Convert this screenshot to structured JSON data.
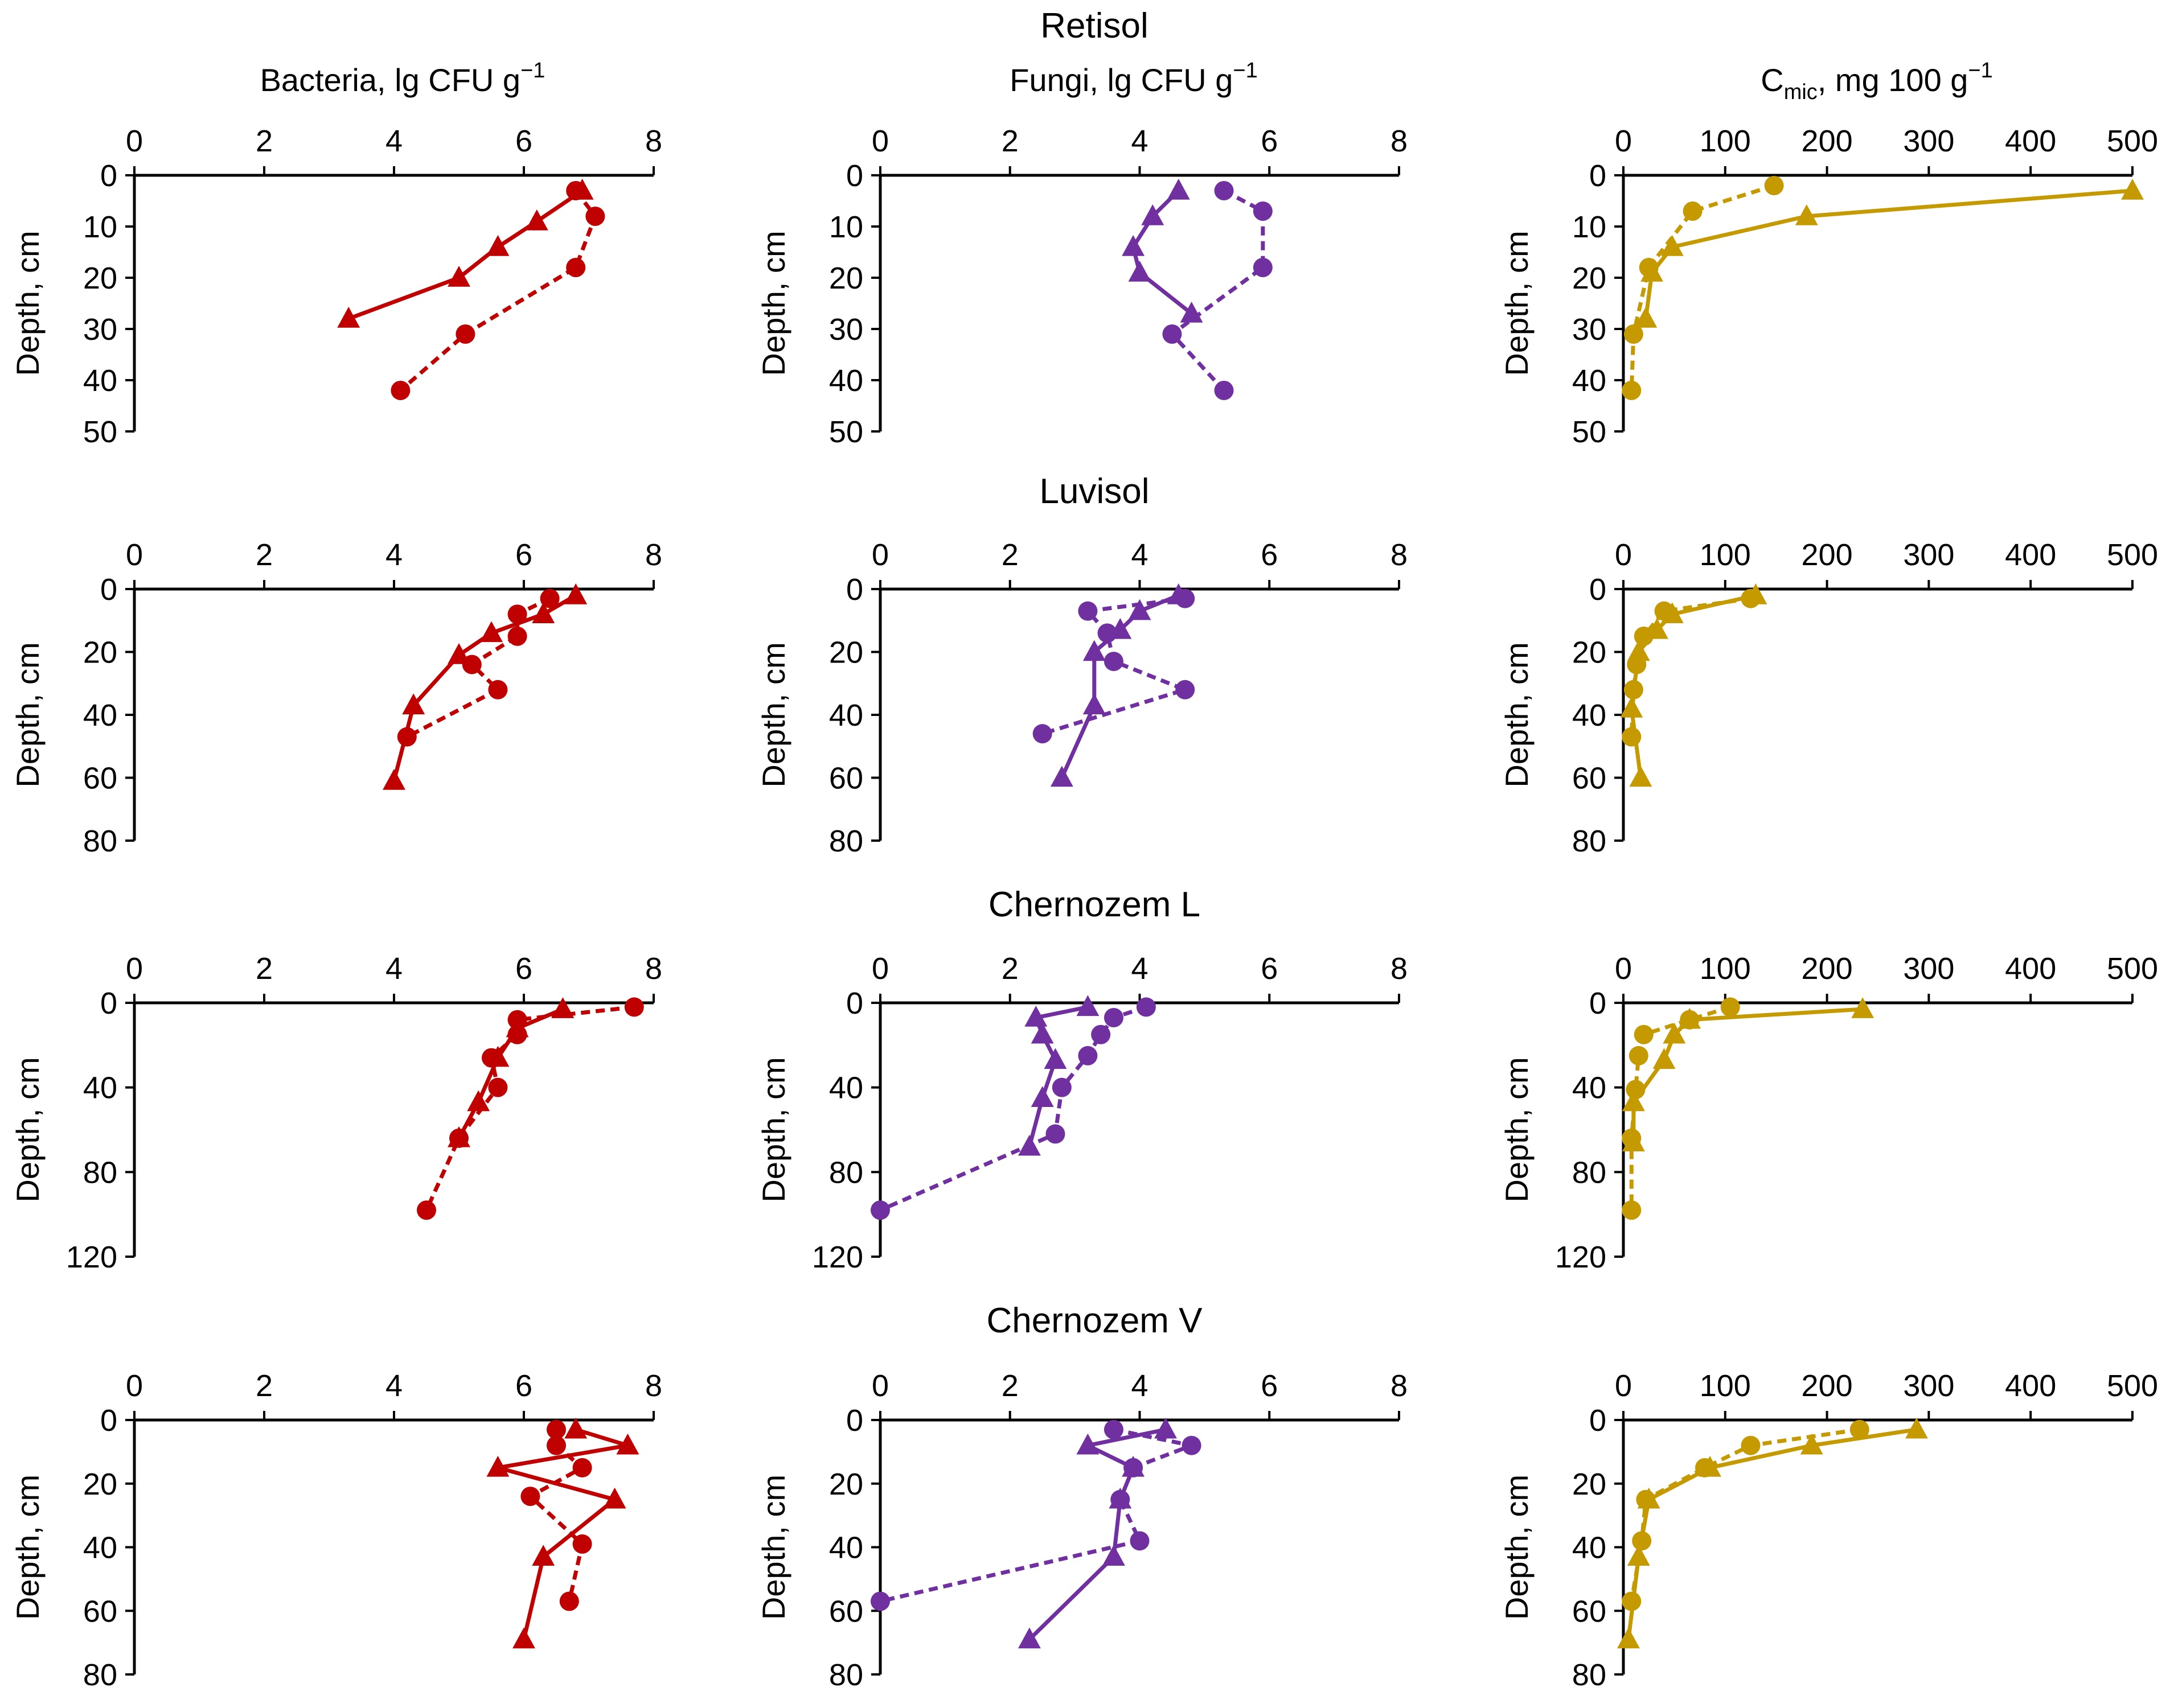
{
  "figure": {
    "row_titles": [
      "Retisol",
      "Luvisol",
      "Chernozem L",
      "Chernozem V"
    ],
    "column_titles": [
      {
        "text": "Bacteria, lg CFU g",
        "sup": "−1"
      },
      {
        "text": "Fungi, lg CFU g",
        "sup": "−1"
      },
      {
        "text": "C",
        "sub": "mic",
        "tail": ", mg 100 g",
        "sup": "−1"
      }
    ],
    "y_axis_label": "Depth, cm",
    "colors": {
      "bacteria": "#C00000",
      "fungi": "#7030A0",
      "cmic": "#C49A00"
    }
  },
  "chart_data": [
    {
      "type": "line",
      "row": 0,
      "col": 0,
      "soil": "Retisol",
      "variable": "Bacteria",
      "xlim": [
        0,
        8
      ],
      "xticks": [
        0,
        2,
        4,
        6,
        8
      ],
      "ylim": [
        0,
        50
      ],
      "yticks": [
        0,
        10,
        20,
        30,
        40,
        50
      ],
      "y_reversed": true,
      "xlabel": "Bacteria, lg CFU g−1",
      "ylabel": "Depth, cm",
      "series": [
        {
          "name": "triangle-solid",
          "marker": "triangle",
          "line": "solid",
          "points": [
            [
              6.9,
              3
            ],
            [
              6.2,
              9
            ],
            [
              5.6,
              14
            ],
            [
              5.0,
              20
            ],
            [
              3.3,
              28
            ]
          ]
        },
        {
          "name": "circle-dashed",
          "marker": "circle",
          "line": "dashed",
          "points": [
            [
              6.8,
              3
            ],
            [
              7.1,
              8
            ],
            [
              6.8,
              18
            ],
            [
              5.1,
              31
            ],
            [
              4.1,
              42
            ]
          ]
        }
      ]
    },
    {
      "type": "line",
      "row": 0,
      "col": 1,
      "soil": "Retisol",
      "variable": "Fungi",
      "xlim": [
        0,
        8
      ],
      "xticks": [
        0,
        2,
        4,
        6,
        8
      ],
      "ylim": [
        0,
        50
      ],
      "yticks": [
        0,
        10,
        20,
        30,
        40,
        50
      ],
      "y_reversed": true,
      "xlabel": "Fungi, lg CFU g−1",
      "ylabel": "Depth, cm",
      "series": [
        {
          "name": "triangle-solid",
          "marker": "triangle",
          "line": "solid",
          "points": [
            [
              4.6,
              3
            ],
            [
              4.2,
              8
            ],
            [
              3.9,
              14
            ],
            [
              4.0,
              19
            ],
            [
              4.8,
              27
            ]
          ]
        },
        {
          "name": "circle-dashed",
          "marker": "circle",
          "line": "dashed",
          "points": [
            [
              5.3,
              3
            ],
            [
              5.9,
              7
            ],
            [
              5.9,
              18
            ],
            [
              4.5,
              31
            ],
            [
              5.3,
              42
            ]
          ]
        }
      ]
    },
    {
      "type": "line",
      "row": 0,
      "col": 2,
      "soil": "Retisol",
      "variable": "Cmic",
      "xlim": [
        0,
        500
      ],
      "xticks": [
        0,
        100,
        200,
        300,
        400,
        500
      ],
      "ylim": [
        0,
        50
      ],
      "yticks": [
        0,
        10,
        20,
        30,
        40,
        50
      ],
      "y_reversed": true,
      "xlabel": "Cmic, mg 100 g−1",
      "ylabel": "Depth, cm",
      "series": [
        {
          "name": "triangle-solid",
          "marker": "triangle",
          "line": "solid",
          "points": [
            [
              500,
              3
            ],
            [
              180,
              8
            ],
            [
              48,
              14
            ],
            [
              28,
              19
            ],
            [
              22,
              28
            ]
          ]
        },
        {
          "name": "circle-dashed",
          "marker": "circle",
          "line": "dashed",
          "points": [
            [
              148,
              2
            ],
            [
              68,
              7
            ],
            [
              25,
              18
            ],
            [
              10,
              31
            ],
            [
              8,
              42
            ]
          ]
        }
      ]
    },
    {
      "type": "line",
      "row": 1,
      "col": 0,
      "soil": "Luvisol",
      "variable": "Bacteria",
      "xlim": [
        0,
        8
      ],
      "xticks": [
        0,
        2,
        4,
        6,
        8
      ],
      "ylim": [
        0,
        80
      ],
      "yticks": [
        0,
        20,
        40,
        60,
        80
      ],
      "y_reversed": true,
      "xlabel": "Bacteria, lg CFU g−1",
      "ylabel": "Depth, cm",
      "series": [
        {
          "name": "triangle-solid",
          "marker": "triangle",
          "line": "solid",
          "points": [
            [
              6.8,
              2
            ],
            [
              6.3,
              8
            ],
            [
              5.5,
              14
            ],
            [
              5.0,
              21
            ],
            [
              4.3,
              37
            ],
            [
              4.0,
              61
            ]
          ]
        },
        {
          "name": "circle-dashed",
          "marker": "circle",
          "line": "dashed",
          "points": [
            [
              6.4,
              3
            ],
            [
              5.9,
              8
            ],
            [
              5.9,
              15
            ],
            [
              5.2,
              24
            ],
            [
              5.6,
              32
            ],
            [
              4.2,
              47
            ]
          ]
        }
      ]
    },
    {
      "type": "line",
      "row": 1,
      "col": 1,
      "soil": "Luvisol",
      "variable": "Fungi",
      "xlim": [
        0,
        8
      ],
      "xticks": [
        0,
        2,
        4,
        6,
        8
      ],
      "ylim": [
        0,
        80
      ],
      "yticks": [
        0,
        20,
        40,
        60,
        80
      ],
      "y_reversed": true,
      "xlabel": "Fungi, lg CFU g−1",
      "ylabel": "Depth, cm",
      "series": [
        {
          "name": "triangle-solid",
          "marker": "triangle",
          "line": "solid",
          "points": [
            [
              4.6,
              2
            ],
            [
              4.0,
              7
            ],
            [
              3.7,
              13
            ],
            [
              3.3,
              20
            ],
            [
              3.3,
              37
            ],
            [
              2.8,
              60
            ]
          ]
        },
        {
          "name": "circle-dashed",
          "marker": "circle",
          "line": "dashed",
          "points": [
            [
              4.7,
              3
            ],
            [
              3.2,
              7
            ],
            [
              3.5,
              14
            ],
            [
              3.6,
              23
            ],
            [
              4.7,
              32
            ],
            [
              2.5,
              46
            ]
          ]
        }
      ]
    },
    {
      "type": "line",
      "row": 1,
      "col": 2,
      "soil": "Luvisol",
      "variable": "Cmic",
      "xlim": [
        0,
        500
      ],
      "xticks": [
        0,
        100,
        200,
        300,
        400,
        500
      ],
      "ylim": [
        0,
        80
      ],
      "yticks": [
        0,
        20,
        40,
        60,
        80
      ],
      "y_reversed": true,
      "xlabel": "Cmic, mg 100 g−1",
      "ylabel": "Depth, cm",
      "series": [
        {
          "name": "triangle-solid",
          "marker": "triangle",
          "line": "solid",
          "points": [
            [
              130,
              2
            ],
            [
              48,
              8
            ],
            [
              33,
              13
            ],
            [
              15,
              20
            ],
            [
              8,
              38
            ],
            [
              17,
              60
            ]
          ]
        },
        {
          "name": "circle-dashed",
          "marker": "circle",
          "line": "dashed",
          "points": [
            [
              125,
              3
            ],
            [
              40,
              7
            ],
            [
              20,
              15
            ],
            [
              13,
              24
            ],
            [
              10,
              32
            ],
            [
              8,
              47
            ]
          ]
        }
      ]
    },
    {
      "type": "line",
      "row": 2,
      "col": 0,
      "soil": "Chernozem L",
      "variable": "Bacteria",
      "xlim": [
        0,
        8
      ],
      "xticks": [
        0,
        2,
        4,
        6,
        8
      ],
      "ylim": [
        0,
        120
      ],
      "yticks": [
        0,
        40,
        80,
        120
      ],
      "y_reversed": true,
      "xlabel": "Bacteria, lg CFU g−1",
      "ylabel": "Depth, cm",
      "series": [
        {
          "name": "triangle-solid",
          "marker": "triangle",
          "line": "solid",
          "points": [
            [
              6.6,
              3
            ],
            [
              5.9,
              12
            ],
            [
              5.6,
              26
            ],
            [
              5.3,
              47
            ],
            [
              5.0,
              64
            ]
          ]
        },
        {
          "name": "circle-dashed",
          "marker": "circle",
          "line": "dashed",
          "points": [
            [
              7.7,
              2
            ],
            [
              5.9,
              8
            ],
            [
              5.9,
              15
            ],
            [
              5.5,
              26
            ],
            [
              5.6,
              40
            ],
            [
              5.0,
              64
            ],
            [
              4.5,
              98
            ]
          ]
        }
      ]
    },
    {
      "type": "line",
      "row": 2,
      "col": 1,
      "soil": "Chernozem L",
      "variable": "Fungi",
      "xlim": [
        0,
        8
      ],
      "xticks": [
        0,
        2,
        4,
        6,
        8
      ],
      "ylim": [
        0,
        120
      ],
      "yticks": [
        0,
        40,
        80,
        120
      ],
      "y_reversed": true,
      "xlabel": "Fungi, lg CFU g−1",
      "ylabel": "Depth, cm",
      "series": [
        {
          "name": "triangle-solid",
          "marker": "triangle",
          "line": "solid",
          "points": [
            [
              3.2,
              2
            ],
            [
              2.4,
              7
            ],
            [
              2.5,
              15
            ],
            [
              2.7,
              27
            ],
            [
              2.5,
              45
            ],
            [
              2.3,
              68
            ]
          ]
        },
        {
          "name": "circle-dashed",
          "marker": "circle",
          "line": "dashed",
          "points": [
            [
              4.1,
              2
            ],
            [
              3.6,
              7
            ],
            [
              3.4,
              15
            ],
            [
              3.2,
              25
            ],
            [
              2.8,
              40
            ],
            [
              2.7,
              62
            ],
            [
              0,
              98
            ]
          ]
        }
      ]
    },
    {
      "type": "line",
      "row": 2,
      "col": 2,
      "soil": "Chernozem L",
      "variable": "Cmic",
      "xlim": [
        0,
        500
      ],
      "xticks": [
        0,
        100,
        200,
        300,
        400,
        500
      ],
      "ylim": [
        0,
        120
      ],
      "yticks": [
        0,
        40,
        80,
        120
      ],
      "y_reversed": true,
      "xlabel": "Cmic, mg 100 g−1",
      "ylabel": "Depth, cm",
      "series": [
        {
          "name": "triangle-solid",
          "marker": "triangle",
          "line": "solid",
          "points": [
            [
              235,
              3
            ],
            [
              65,
              8
            ],
            [
              50,
              15
            ],
            [
              40,
              27
            ],
            [
              10,
              47
            ],
            [
              10,
              66
            ]
          ]
        },
        {
          "name": "circle-dashed",
          "marker": "circle",
          "line": "dashed",
          "points": [
            [
              105,
              2
            ],
            [
              65,
              8
            ],
            [
              20,
              15
            ],
            [
              15,
              25
            ],
            [
              12,
              41
            ],
            [
              8,
              64
            ],
            [
              8,
              98
            ]
          ]
        }
      ]
    },
    {
      "type": "line",
      "row": 3,
      "col": 0,
      "soil": "Chernozem V",
      "variable": "Bacteria",
      "xlim": [
        0,
        8
      ],
      "xticks": [
        0,
        2,
        4,
        6,
        8
      ],
      "ylim": [
        0,
        80
      ],
      "yticks": [
        0,
        20,
        40,
        60,
        80
      ],
      "y_reversed": true,
      "xlabel": "Bacteria, lg CFU g−1",
      "ylabel": "Depth, cm",
      "series": [
        {
          "name": "triangle-solid",
          "marker": "triangle",
          "line": "solid",
          "points": [
            [
              6.8,
              3
            ],
            [
              7.6,
              8
            ],
            [
              5.6,
              15
            ],
            [
              7.4,
              25
            ],
            [
              6.3,
              43
            ],
            [
              6.0,
              69
            ]
          ]
        },
        {
          "name": "circle-dashed",
          "marker": "circle",
          "line": "dashed",
          "points": [
            [
              6.5,
              3
            ],
            [
              6.5,
              8
            ],
            [
              6.9,
              15
            ],
            [
              6.1,
              24
            ],
            [
              6.9,
              39
            ],
            [
              6.7,
              57
            ]
          ]
        }
      ]
    },
    {
      "type": "line",
      "row": 3,
      "col": 1,
      "soil": "Chernozem V",
      "variable": "Fungi",
      "xlim": [
        0,
        8
      ],
      "xticks": [
        0,
        2,
        4,
        6,
        8
      ],
      "ylim": [
        0,
        80
      ],
      "yticks": [
        0,
        20,
        40,
        60,
        80
      ],
      "y_reversed": true,
      "xlabel": "Fungi, lg CFU g−1",
      "ylabel": "Depth, cm",
      "series": [
        {
          "name": "triangle-solid",
          "marker": "triangle",
          "line": "solid",
          "points": [
            [
              4.4,
              3
            ],
            [
              3.2,
              8
            ],
            [
              3.9,
              15
            ],
            [
              3.7,
              25
            ],
            [
              3.6,
              43
            ],
            [
              2.3,
              69
            ]
          ]
        },
        {
          "name": "circle-dashed",
          "marker": "circle",
          "line": "dashed",
          "points": [
            [
              3.6,
              3
            ],
            [
              4.8,
              8
            ],
            [
              3.9,
              15
            ],
            [
              3.7,
              25
            ],
            [
              4.0,
              38
            ],
            [
              0,
              57
            ]
          ]
        }
      ]
    },
    {
      "type": "line",
      "row": 3,
      "col": 2,
      "soil": "Chernozem V",
      "variable": "Cmic",
      "xlim": [
        0,
        500
      ],
      "xticks": [
        0,
        100,
        200,
        300,
        400,
        500
      ],
      "ylim": [
        0,
        80
      ],
      "yticks": [
        0,
        20,
        40,
        60,
        80
      ],
      "y_reversed": true,
      "xlabel": "Cmic, mg 100 g−1",
      "ylabel": "Depth, cm",
      "series": [
        {
          "name": "triangle-solid",
          "marker": "triangle",
          "line": "solid",
          "points": [
            [
              288,
              3
            ],
            [
              185,
              8
            ],
            [
              85,
              15
            ],
            [
              25,
              25
            ],
            [
              15,
              43
            ],
            [
              5,
              69
            ]
          ]
        },
        {
          "name": "circle-dashed",
          "marker": "circle",
          "line": "dashed",
          "points": [
            [
              232,
              3
            ],
            [
              125,
              8
            ],
            [
              80,
              15
            ],
            [
              22,
              25
            ],
            [
              18,
              38
            ],
            [
              8,
              57
            ]
          ]
        }
      ]
    }
  ]
}
